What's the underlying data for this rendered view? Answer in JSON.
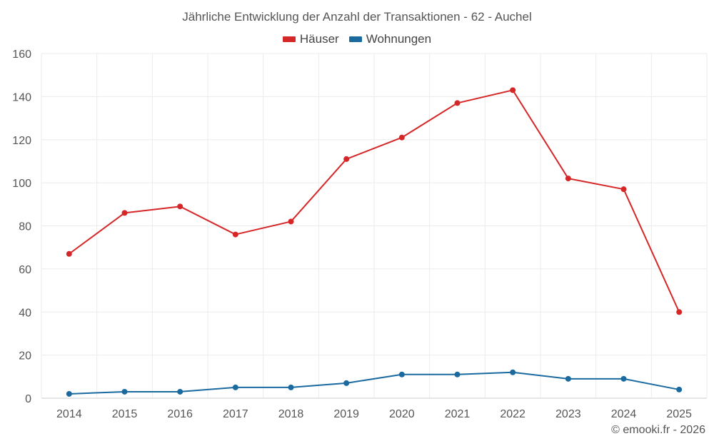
{
  "chart_data": {
    "type": "line",
    "title": "Jährliche Entwicklung der Anzahl der Transaktionen - 62 - Auchel",
    "xlabel": "",
    "ylabel": "",
    "categories": [
      "2014",
      "2015",
      "2016",
      "2017",
      "2018",
      "2019",
      "2020",
      "2021",
      "2022",
      "2023",
      "2024",
      "2025"
    ],
    "ylim": [
      0,
      160
    ],
    "yticks": [
      0,
      20,
      40,
      60,
      80,
      100,
      120,
      140,
      160
    ],
    "grid": true,
    "legend_position": "top-center",
    "series": [
      {
        "name": "Häuser",
        "color": "#d62728",
        "values": [
          67,
          86,
          89,
          76,
          82,
          111,
          121,
          137,
          143,
          102,
          97,
          40
        ]
      },
      {
        "name": "Wohnungen",
        "color": "#1a6aa0",
        "values": [
          2,
          3,
          3,
          5,
          5,
          7,
          11,
          11,
          12,
          9,
          9,
          4
        ]
      }
    ]
  },
  "credit": "© emooki.fr - 2026"
}
